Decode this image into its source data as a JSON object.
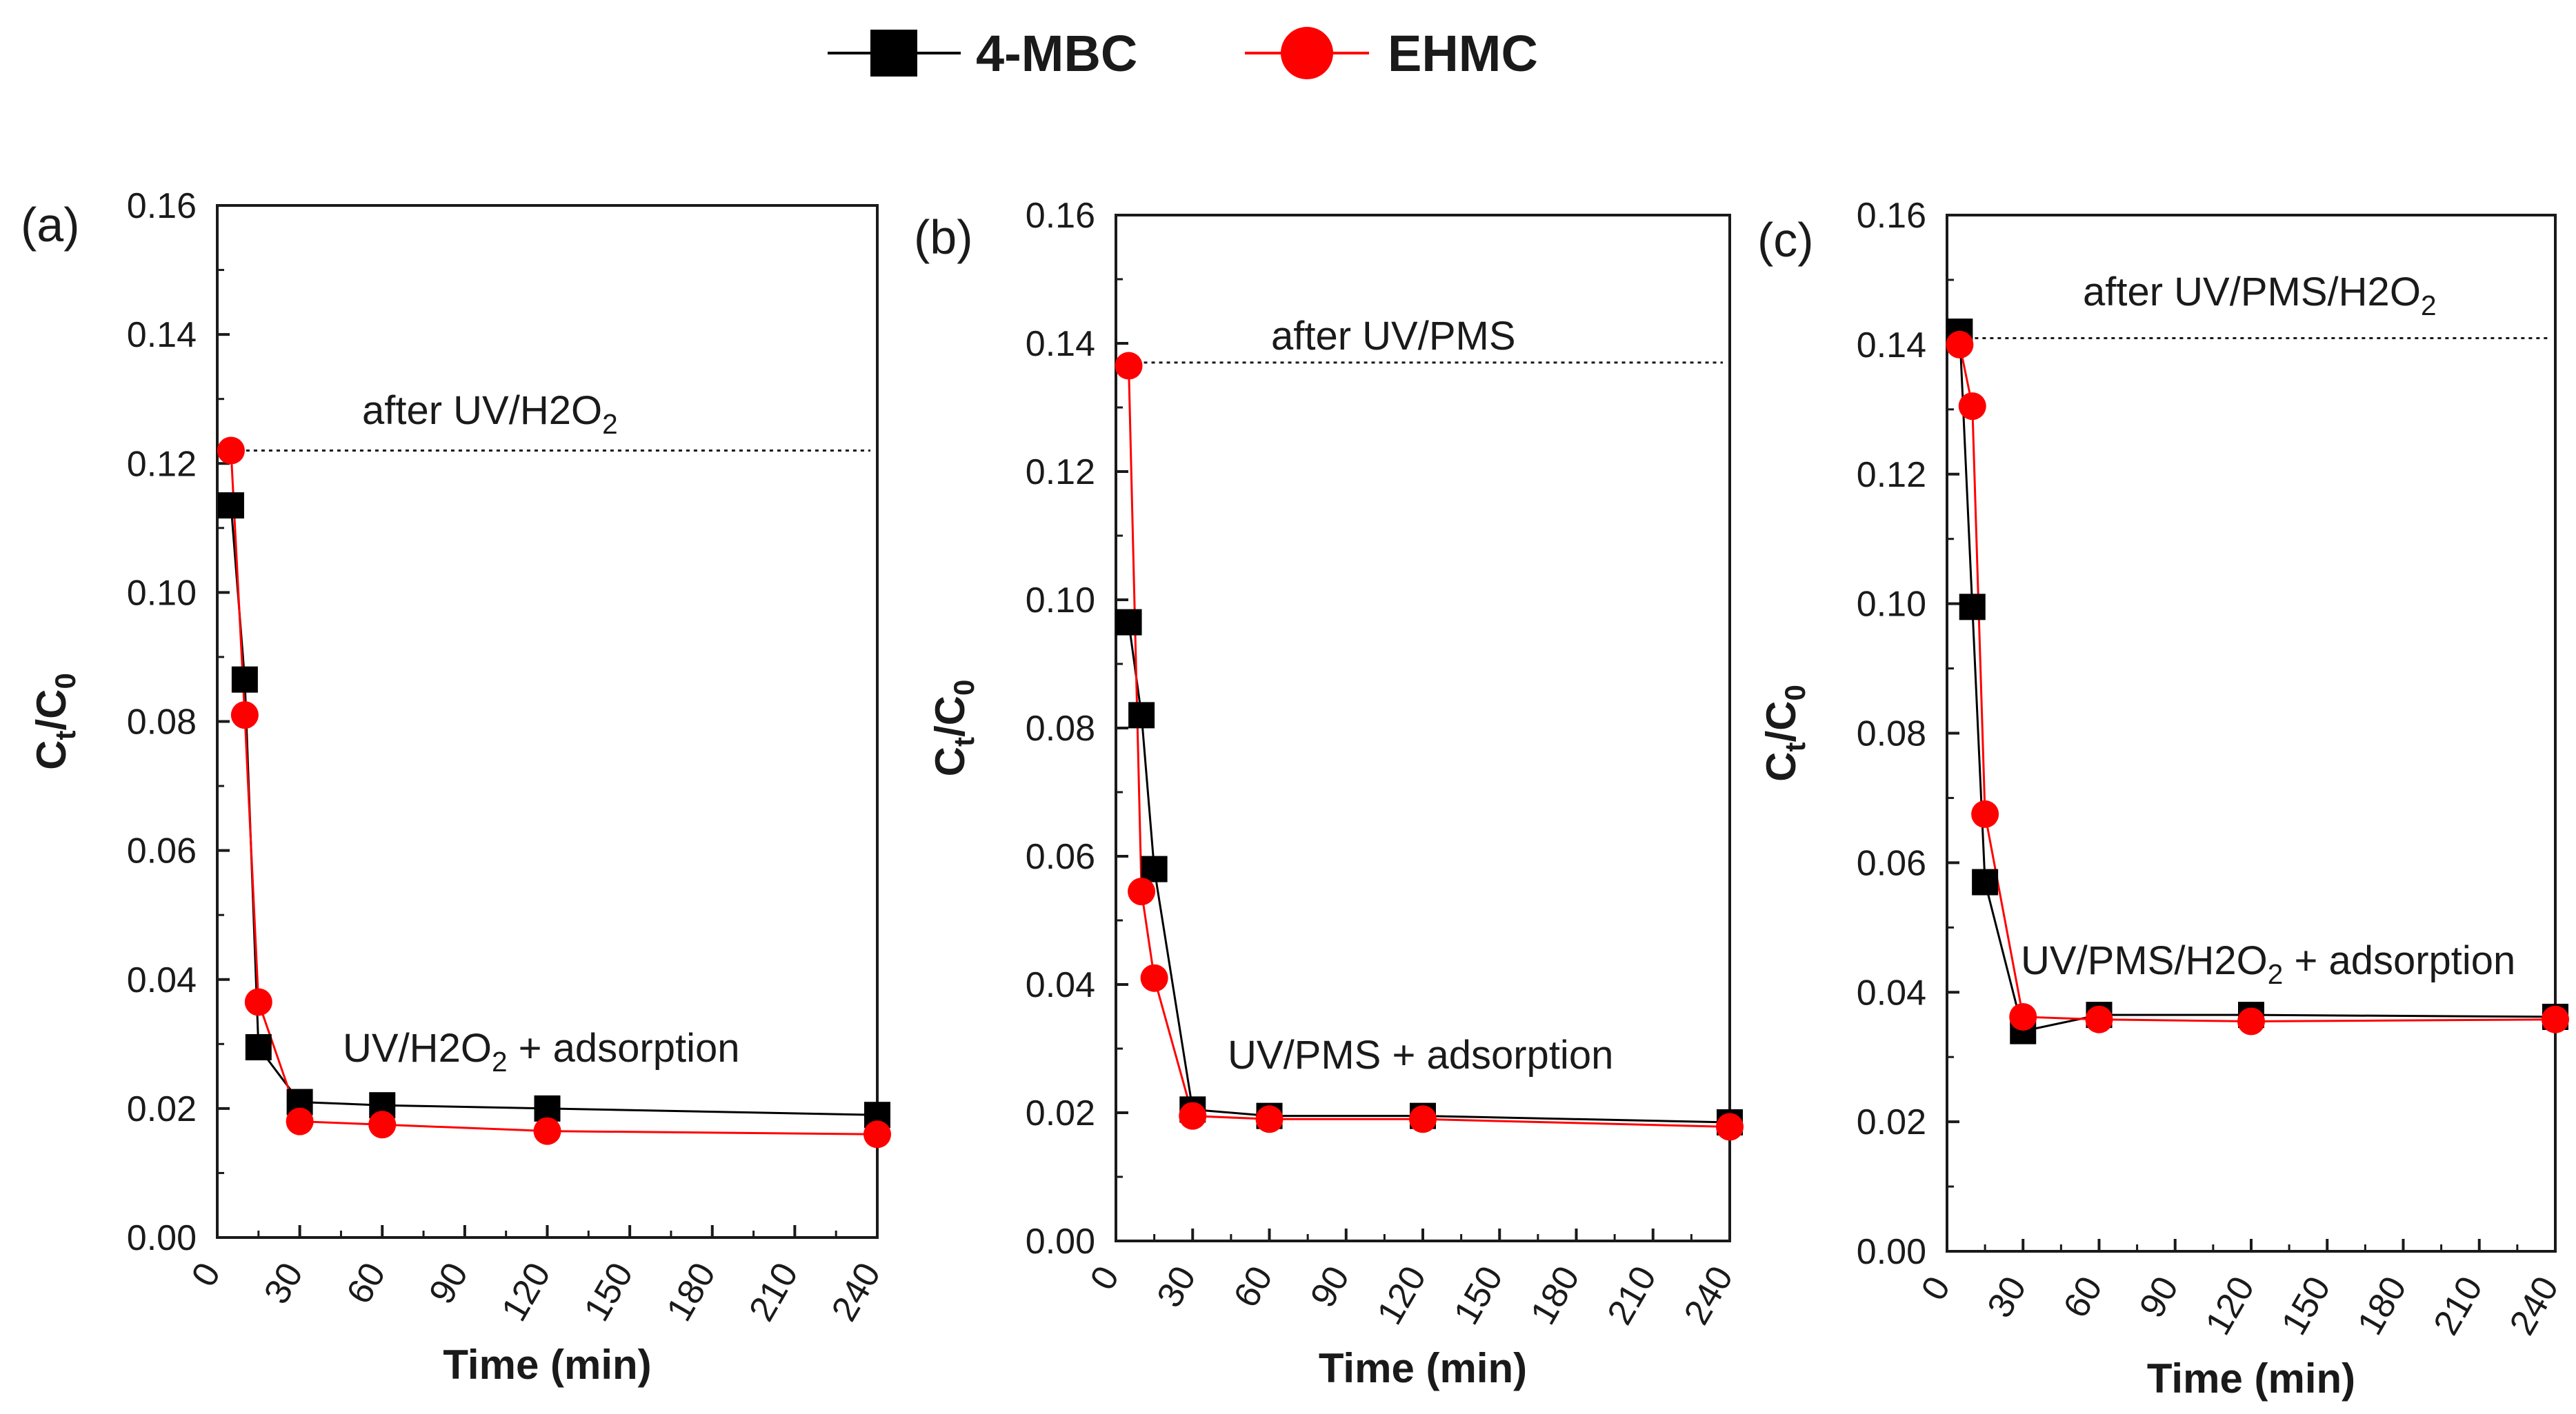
{
  "legend": [
    {
      "name": "4-MBC",
      "marker": "square",
      "color": "#000000"
    },
    {
      "name": "EHMC",
      "marker": "circle",
      "color": "#ff0000"
    }
  ],
  "chart_data": [
    {
      "type": "line",
      "panel_label": "(a)",
      "xlabel": "Time (min)",
      "ylabel": "Ct/C0",
      "xlim": [
        0,
        240
      ],
      "ylim": [
        0,
        0.16
      ],
      "xticks": [
        "0",
        "30",
        "60",
        "90",
        "120",
        "150",
        "180",
        "210",
        "240"
      ],
      "yticks": [
        "0.00",
        "0.02",
        "0.04",
        "0.06",
        "0.08",
        "0.10",
        "0.12",
        "0.14",
        "0.16"
      ],
      "reference_line": {
        "y": 0.122,
        "x_from": 5,
        "x_to": 240
      },
      "annotation_top": "after UV/H2O2",
      "annotation_bottom": "UV/H2O2 + adsorption",
      "series": [
        {
          "name": "4-MBC",
          "x": [
            5,
            10,
            15,
            30,
            60,
            120,
            240
          ],
          "y": [
            0.1135,
            0.0865,
            0.0295,
            0.021,
            0.0205,
            0.02,
            0.019
          ]
        },
        {
          "name": "EHMC",
          "x": [
            5,
            10,
            15,
            30,
            60,
            120,
            240
          ],
          "y": [
            0.122,
            0.081,
            0.0365,
            0.018,
            0.0175,
            0.0165,
            0.016
          ]
        }
      ]
    },
    {
      "type": "line",
      "panel_label": "(b)",
      "xlabel": "Time (min)",
      "ylabel": "Ct/C0",
      "xlim": [
        0,
        240
      ],
      "ylim": [
        0,
        0.16
      ],
      "xticks": [
        "0",
        "30",
        "60",
        "90",
        "120",
        "150",
        "180",
        "210",
        "240"
      ],
      "yticks": [
        "0.00",
        "0.02",
        "0.04",
        "0.06",
        "0.08",
        "0.10",
        "0.12",
        "0.14",
        "0.16"
      ],
      "reference_line": {
        "y": 0.137,
        "x_from": 5,
        "x_to": 240
      },
      "annotation_top": "after UV/PMS",
      "annotation_bottom": "UV/PMS + adsorption",
      "series": [
        {
          "name": "4-MBC",
          "x": [
            5,
            10,
            15,
            30,
            60,
            120,
            240
          ],
          "y": [
            0.0965,
            0.082,
            0.058,
            0.0205,
            0.0195,
            0.0195,
            0.0185
          ]
        },
        {
          "name": "EHMC",
          "x": [
            5,
            10,
            15,
            30,
            60,
            120,
            240
          ],
          "y": [
            0.1365,
            0.0545,
            0.041,
            0.0195,
            0.019,
            0.019,
            0.0178
          ]
        }
      ]
    },
    {
      "type": "line",
      "panel_label": "(c)",
      "xlabel": "Time (min)",
      "ylabel": "Ct/C0",
      "xlim": [
        0,
        240
      ],
      "ylim": [
        0,
        0.16
      ],
      "xticks": [
        "0",
        "30",
        "60",
        "90",
        "120",
        "150",
        "180",
        "210",
        "240"
      ],
      "yticks": [
        "0.00",
        "0.02",
        "0.04",
        "0.06",
        "0.08",
        "0.10",
        "0.12",
        "0.14",
        "0.16"
      ],
      "reference_line": {
        "y": 0.141,
        "x_from": 5,
        "x_to": 240
      },
      "annotation_top": "after UV/PMS/H2O2",
      "annotation_bottom": "UV/PMS/H2O2 + adsorption",
      "series": [
        {
          "name": "4-MBC",
          "x": [
            5,
            10,
            15,
            30,
            60,
            120,
            240
          ],
          "y": [
            0.142,
            0.0995,
            0.057,
            0.034,
            0.0365,
            0.0365,
            0.0362
          ]
        },
        {
          "name": "EHMC",
          "x": [
            5,
            10,
            15,
            30,
            60,
            120,
            240
          ],
          "y": [
            0.14,
            0.1305,
            0.0675,
            0.0362,
            0.0358,
            0.0355,
            0.0358
          ]
        }
      ]
    }
  ]
}
